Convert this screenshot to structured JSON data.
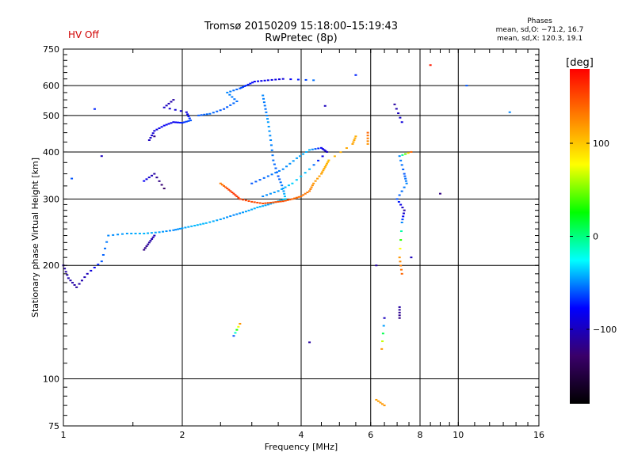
{
  "header": {
    "status": "HV Off",
    "title": "Tromsø 20150209 15:18:00–15:19:43",
    "subtitle": "RwPretec (8p)",
    "stats_title": "Phases",
    "stats_o": "mean, sd,O: −71.2, 16.7",
    "stats_x": "mean, sd,X: 120.3, 19.1"
  },
  "colorbar": {
    "unit": "[deg]",
    "min": -180,
    "max": 180,
    "tick_labels": [
      "100",
      "0",
      "−100"
    ],
    "tick_values": [
      100,
      0,
      -100
    ],
    "colors": [
      "#000000",
      "#3a006a",
      "#0000ff",
      "#00ffff",
      "#00ff00",
      "#ffff00",
      "#ff8000",
      "#ff0000"
    ]
  },
  "chart_data": {
    "type": "scatter",
    "xlabel": "Frequency [MHz]",
    "ylabel": "Stationary phase Virtual Height [km]",
    "x_scale": "log",
    "y_scale": "log",
    "xlim": [
      1,
      16
    ],
    "ylim": [
      75,
      750
    ],
    "grid": true,
    "x_ticks": [
      1,
      2,
      4,
      6,
      8,
      10,
      16
    ],
    "x_tick_labels": [
      "1",
      "2",
      "4",
      "6",
      "8",
      "10",
      "16"
    ],
    "y_ticks": [
      75,
      100,
      200,
      300,
      400,
      500,
      600,
      750
    ],
    "y_tick_labels": [
      "75",
      "100",
      "200",
      "300",
      "400",
      "500",
      "600",
      "750"
    ],
    "color_variable": "phase [deg]",
    "series": [
      {
        "trace": [
          [
            1.0,
            200,
            -110
          ],
          [
            1.03,
            185,
            -105
          ],
          [
            1.08,
            175,
            -110
          ],
          [
            1.15,
            190,
            -100
          ],
          [
            1.25,
            205,
            -60
          ],
          [
            1.3,
            240,
            -50
          ],
          [
            1.45,
            243,
            -45
          ],
          [
            1.6,
            243,
            -40
          ],
          [
            1.75,
            245,
            -45
          ],
          [
            1.9,
            248,
            -50
          ],
          [
            2.0,
            251,
            -45
          ],
          [
            2.15,
            255,
            -40
          ],
          [
            2.3,
            259,
            -40
          ],
          [
            2.5,
            265,
            -45
          ],
          [
            2.7,
            272,
            -50
          ],
          [
            2.9,
            278,
            -45
          ],
          [
            3.1,
            285,
            -40
          ],
          [
            3.3,
            290,
            -45
          ],
          [
            3.5,
            296,
            -40
          ],
          [
            3.65,
            300,
            -35
          ],
          [
            3.6,
            320,
            -50
          ],
          [
            3.5,
            345,
            -60
          ],
          [
            3.4,
            380,
            -55
          ],
          [
            3.35,
            430,
            -50
          ],
          [
            3.3,
            480,
            -45
          ],
          [
            3.25,
            520,
            -55
          ],
          [
            3.2,
            565,
            -50
          ]
        ]
      },
      {
        "trace": [
          [
            1.65,
            430,
            -100
          ],
          [
            1.7,
            455,
            -90
          ],
          [
            1.8,
            470,
            -80
          ],
          [
            1.9,
            480,
            -85
          ],
          [
            2.0,
            478,
            -70
          ],
          [
            2.1,
            485,
            -60
          ],
          [
            2.05,
            510,
            -90
          ],
          [
            1.8,
            525,
            -95
          ],
          [
            1.9,
            550,
            -110
          ],
          [
            1.7,
            440,
            -120
          ],
          [
            2.2,
            500,
            -60
          ],
          [
            2.35,
            505,
            -55
          ],
          [
            2.55,
            520,
            -60
          ],
          [
            2.75,
            545,
            -55
          ],
          [
            2.6,
            575,
            -50
          ],
          [
            2.8,
            590,
            -60
          ],
          [
            2.9,
            600,
            -70
          ],
          [
            3.05,
            615,
            -80
          ],
          [
            3.3,
            620,
            -85
          ],
          [
            3.6,
            625,
            -90
          ],
          [
            4.3,
            620,
            -55
          ]
        ]
      },
      {
        "trace": [
          [
            3.0,
            330,
            -60
          ],
          [
            3.3,
            345,
            -55
          ],
          [
            3.6,
            360,
            -50
          ],
          [
            3.9,
            385,
            -45
          ],
          [
            4.2,
            405,
            -40
          ],
          [
            4.5,
            410,
            -80
          ],
          [
            4.65,
            400,
            -100
          ],
          [
            4.2,
            360,
            -40
          ],
          [
            3.8,
            330,
            -35
          ],
          [
            3.5,
            315,
            -45
          ],
          [
            3.2,
            305,
            -50
          ]
        ]
      },
      {
        "trace": [
          [
            2.5,
            330,
            130
          ],
          [
            2.6,
            320,
            150
          ],
          [
            2.7,
            310,
            160
          ],
          [
            2.8,
            300,
            155
          ],
          [
            3.0,
            295,
            150
          ],
          [
            3.2,
            292,
            150
          ],
          [
            3.4,
            294,
            145
          ],
          [
            3.6,
            296,
            150
          ],
          [
            3.8,
            300,
            140
          ],
          [
            4.0,
            305,
            135
          ],
          [
            4.2,
            315,
            130
          ],
          [
            4.3,
            330,
            120
          ],
          [
            4.5,
            350,
            115
          ],
          [
            4.6,
            365,
            110
          ],
          [
            4.7,
            380,
            105
          ],
          [
            5.4,
            420,
            115
          ],
          [
            5.5,
            440,
            110
          ]
        ]
      },
      {
        "trace": [
          [
            1.6,
            220,
            -120
          ],
          [
            1.65,
            230,
            -110
          ],
          [
            1.7,
            240,
            -100
          ],
          [
            1.6,
            335,
            -80
          ],
          [
            1.7,
            350,
            -110
          ],
          [
            1.8,
            320,
            -130
          ],
          [
            1.25,
            390,
            -100
          ],
          [
            1.2,
            520,
            -70
          ],
          [
            1.05,
            340,
            -60
          ]
        ]
      },
      {
        "trace": [
          [
            6.2,
            200,
            -110
          ],
          [
            6.5,
            145,
            -100
          ],
          [
            6.4,
            120,
            120
          ],
          [
            6.2,
            88,
            115
          ],
          [
            6.5,
            85,
            120
          ],
          [
            7.2,
            190,
            140
          ],
          [
            7.1,
            210,
            120
          ],
          [
            7.2,
            260,
            -50
          ],
          [
            7.3,
            280,
            -110
          ],
          [
            7.0,
            300,
            -60
          ],
          [
            7.4,
            330,
            -50
          ],
          [
            7.3,
            350,
            -60
          ],
          [
            7.1,
            390,
            -50
          ],
          [
            7.6,
            400,
            140
          ],
          [
            7.6,
            210,
            -100
          ],
          [
            7.1,
            145,
            -120
          ],
          [
            7.1,
            155,
            -110
          ],
          [
            6.9,
            535,
            -110
          ],
          [
            7.2,
            480,
            -90
          ],
          [
            8.5,
            680,
            170
          ],
          [
            9.0,
            310,
            -120
          ],
          [
            10.5,
            600,
            -60
          ],
          [
            13.5,
            510,
            -50
          ],
          [
            5.9,
            450,
            140
          ],
          [
            5.9,
            420,
            120
          ],
          [
            5.5,
            640,
            -70
          ],
          [
            4.6,
            530,
            -100
          ],
          [
            2.8,
            140,
            120
          ],
          [
            2.7,
            130,
            -60
          ],
          [
            4.2,
            125,
            -110
          ]
        ]
      }
    ]
  }
}
